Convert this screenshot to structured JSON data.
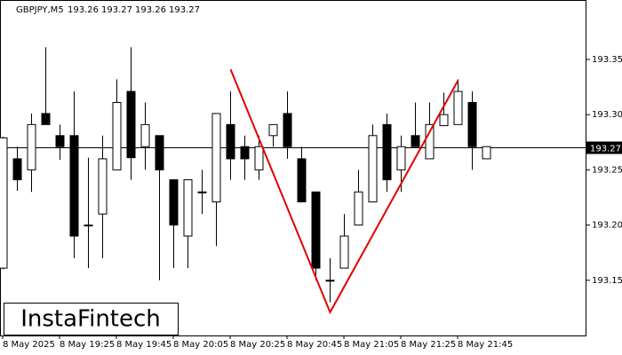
{
  "chart_data": {
    "type": "candlestick",
    "symbol": "GBPJPY,M5",
    "header_ohlc": [
      193.26,
      193.27,
      193.26,
      193.27
    ],
    "categories": [
      "8 May 2025",
      null,
      null,
      null,
      "8 May 19:25",
      null,
      null,
      null,
      "8 May 19:45",
      null,
      null,
      null,
      "8 May 20:05",
      null,
      null,
      null,
      "8 May 20:25",
      null,
      null,
      null,
      "8 May 20:45",
      null,
      null,
      null,
      "8 May 21:05",
      null,
      null,
      null,
      "8 May 21:25",
      null,
      null,
      null,
      "8 May 21:45",
      null,
      null
    ],
    "open": [
      193.161,
      193.26,
      193.25,
      193.301,
      193.281,
      193.281,
      193.2,
      193.21,
      193.25,
      193.321,
      193.271,
      193.281,
      193.241,
      193.19,
      193.23,
      193.221,
      193.291,
      193.271,
      193.25,
      193.281,
      193.301,
      193.26,
      193.23,
      193.15,
      193.161,
      193.2,
      193.221,
      193.291,
      193.25,
      193.281,
      193.26,
      193.29,
      193.291,
      193.311,
      193.26
    ],
    "high": [
      193.28,
      193.271,
      193.301,
      193.361,
      193.291,
      193.321,
      193.261,
      193.281,
      193.332,
      193.361,
      193.311,
      193.281,
      193.241,
      193.241,
      193.25,
      193.301,
      193.321,
      193.281,
      193.281,
      193.291,
      193.321,
      193.271,
      193.23,
      193.17,
      193.21,
      193.25,
      193.291,
      193.301,
      193.281,
      193.311,
      193.311,
      193.32,
      193.332,
      193.321,
      193.271
    ],
    "low": [
      193.16,
      193.231,
      193.23,
      193.291,
      193.259,
      193.17,
      193.161,
      193.17,
      193.25,
      193.241,
      193.25,
      193.15,
      193.161,
      193.161,
      193.21,
      193.181,
      193.241,
      193.241,
      193.241,
      193.271,
      193.26,
      193.221,
      193.15,
      193.13,
      193.161,
      193.2,
      193.221,
      193.23,
      193.23,
      193.271,
      193.26,
      193.29,
      193.291,
      193.25,
      193.26
    ],
    "close": [
      193.279,
      193.241,
      193.291,
      193.291,
      193.271,
      193.19,
      193.2,
      193.26,
      193.311,
      193.261,
      193.291,
      193.25,
      193.2,
      193.241,
      193.23,
      193.301,
      193.26,
      193.26,
      193.271,
      193.291,
      193.271,
      193.221,
      193.161,
      193.15,
      193.19,
      193.23,
      193.281,
      193.241,
      193.271,
      193.271,
      193.291,
      193.3,
      193.321,
      193.271,
      193.271
    ],
    "last_price": 193.27,
    "pattern": {
      "color": "#e00000",
      "x": [
        16,
        23,
        32
      ],
      "y": [
        193.341,
        193.121,
        193.331
      ]
    },
    "ylim": [
      193.1,
      193.403
    ],
    "yticks": [
      193.15,
      {
        "value": 193.2,
        "label": "193.20"
      },
      193.25,
      {
        "value": 193.3,
        "label": "193.30"
      },
      193.35
    ]
  },
  "logo": "InstaFintech"
}
